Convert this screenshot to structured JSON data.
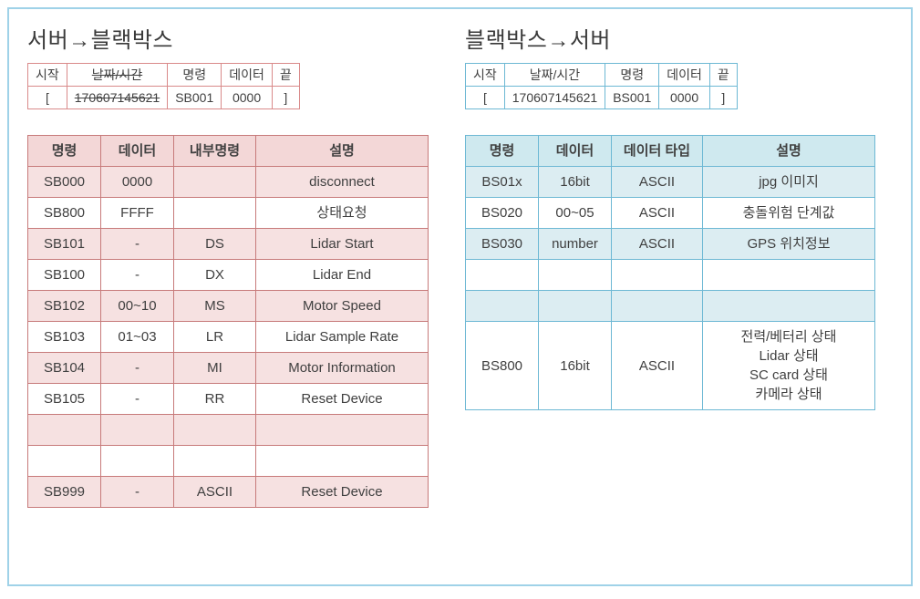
{
  "left": {
    "title": "서버→블랙박스",
    "packet": {
      "headers": [
        "시작",
        "날짜/시간",
        "명령",
        "데이터",
        "끝"
      ],
      "values": [
        "[",
        "170607145621",
        "SB001",
        "0000",
        "]"
      ]
    },
    "commands": {
      "headers": [
        "명령",
        "데이터",
        "내부명령",
        "설명"
      ],
      "col_widths": [
        "80px",
        "80px",
        "90px",
        "auto"
      ],
      "rows": [
        {
          "cmd": "SB000",
          "data": "0000",
          "internal": "",
          "desc": "disconnect"
        },
        {
          "cmd": "SB800",
          "data": "FFFF",
          "internal": "",
          "desc": "상태요청"
        },
        {
          "cmd": "SB101",
          "data": "-",
          "internal": "DS",
          "desc": "Lidar Start"
        },
        {
          "cmd": "SB100",
          "data": "-",
          "internal": "DX",
          "desc": "Lidar End"
        },
        {
          "cmd": "SB102",
          "data": "00~10",
          "internal": "MS",
          "desc": "Motor Speed"
        },
        {
          "cmd": "SB103",
          "data": "01~03",
          "internal": "LR",
          "desc": "Lidar Sample Rate"
        },
        {
          "cmd": "SB104",
          "data": "-",
          "internal": "MI",
          "desc": "Motor Information"
        },
        {
          "cmd": "SB105",
          "data": "-",
          "internal": "RR",
          "desc": "Reset Device"
        },
        {
          "cmd": "",
          "data": "",
          "internal": "",
          "desc": ""
        },
        {
          "cmd": "",
          "data": "",
          "internal": "",
          "desc": ""
        },
        {
          "cmd": "SB999",
          "data": "-",
          "internal": "ASCII",
          "desc": "Reset Device"
        }
      ]
    }
  },
  "right": {
    "title": "블랙박스→서버",
    "packet": {
      "headers": [
        "시작",
        "날짜/시간",
        "명령",
        "데이터",
        "끝"
      ],
      "values": [
        "[",
        "170607145621",
        "BS001",
        "0000",
        "]"
      ]
    },
    "commands": {
      "headers": [
        "명령",
        "데이터",
        "데이터 타입",
        "설명"
      ],
      "col_widths": [
        "80px",
        "80px",
        "100px",
        "auto"
      ],
      "rows": [
        {
          "cmd": "BS01x",
          "data": "16bit",
          "type": "ASCII",
          "desc": "jpg 이미지"
        },
        {
          "cmd": "BS020",
          "data": "00~05",
          "type": "ASCII",
          "desc": "충돌위험 단계값"
        },
        {
          "cmd": "BS030",
          "data": "number",
          "type": "ASCII",
          "desc": "GPS 위치정보"
        },
        {
          "cmd": "",
          "data": "",
          "type": "",
          "desc": ""
        },
        {
          "cmd": "",
          "data": "",
          "type": "",
          "desc": ""
        },
        {
          "cmd": "BS800",
          "data": "16bit",
          "type": "ASCII",
          "desc": "전력/베터리 상태\nLidar 상태\nSC card 상태\n카메라 상태"
        }
      ]
    }
  },
  "colors": {
    "frame_border": "#9fd2e8",
    "title_color": "#3a3a3a",
    "left_border": "#c77a7a",
    "left_header_bg": "#f3d7d7",
    "left_alt_bg": "#f6e1e1",
    "right_border": "#6db8d4",
    "right_header_bg": "#cfe9ef",
    "right_alt_bg": "#dcedf2",
    "background": "#ffffff"
  }
}
